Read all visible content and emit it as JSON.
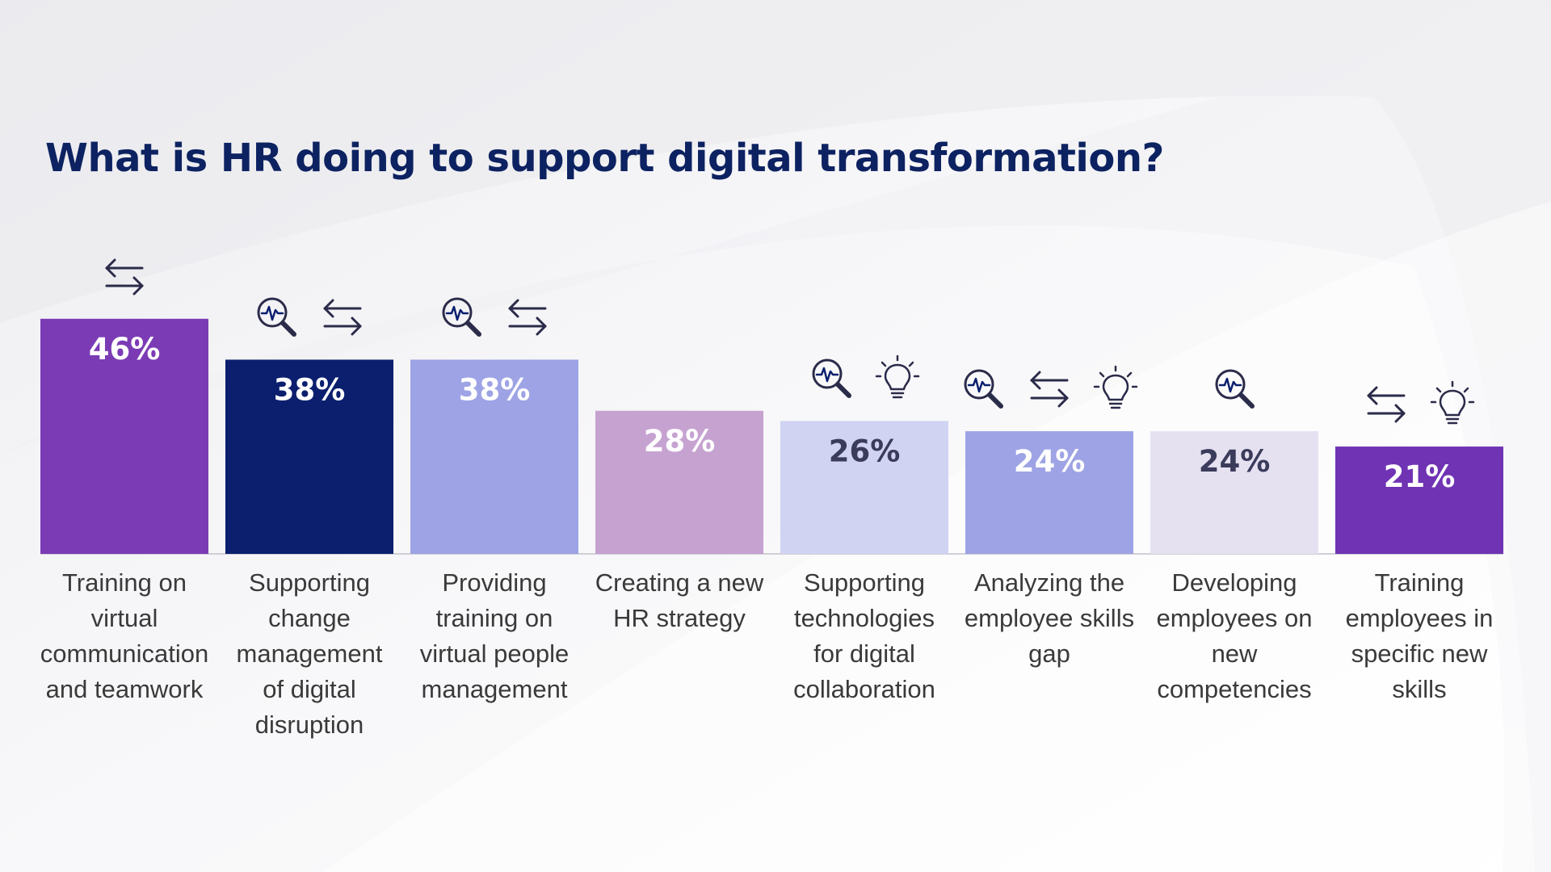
{
  "title": "What is HR doing to support digital transformation?",
  "chart_data": {
    "type": "bar",
    "title": "What is HR doing to support digital transformation?",
    "xlabel": "",
    "ylabel": "",
    "ylim": [
      0,
      50
    ],
    "grid": false,
    "categories": [
      "Training on virtual communication and teamwork",
      "Supporting change management of digital disruption",
      "Providing training on virtual people management",
      "Creating a new HR strategy",
      "Supporting technologies for digital collaboration",
      "Analyzing the employee skills gap",
      "Developing employees on new competencies",
      "Training employees in specific new skills"
    ],
    "values": [
      46,
      38,
      38,
      28,
      26,
      24,
      24,
      21
    ],
    "value_labels": [
      "46%",
      "38%",
      "38%",
      "28%",
      "26%",
      "24%",
      "24%",
      "21%"
    ],
    "bar_colors": [
      "#7b3bb5",
      "#0b1f6e",
      "#9da3e4",
      "#c6a2d1",
      "#d1d3f3",
      "#9da3e4",
      "#e6e1f1",
      "#6f33b4"
    ],
    "value_label_colors": [
      "#ffffff",
      "#ffffff",
      "#ffffff",
      "#ffffff",
      "#3b3b5c",
      "#ffffff",
      "#3b3b5c",
      "#ffffff"
    ],
    "category_label_lines": [
      [
        "Training on",
        "virtual",
        "communication",
        "and teamwork"
      ],
      [
        "Supporting",
        "change",
        "management",
        "of digital",
        "disruption"
      ],
      [
        "Providing",
        "training on",
        "virtual people",
        "management"
      ],
      [
        "Creating a new",
        "HR strategy"
      ],
      [
        "Supporting",
        "technologies",
        "for digital",
        "collaboration"
      ],
      [
        "Analyzing the",
        "employee skills",
        "gap"
      ],
      [
        "Developing",
        "employees on",
        "new",
        "competencies"
      ],
      [
        "Training",
        "employees in",
        "specific new",
        "skills"
      ]
    ],
    "bar_icons": [
      [
        "exchange-arrows-icon"
      ],
      [
        "magnifier-pulse-icon",
        "exchange-arrows-icon"
      ],
      [
        "magnifier-pulse-icon",
        "exchange-arrows-icon"
      ],
      [],
      [
        "magnifier-pulse-icon",
        "lightbulb-icon"
      ],
      [
        "magnifier-pulse-icon",
        "exchange-arrows-icon",
        "lightbulb-icon"
      ],
      [
        "magnifier-pulse-icon"
      ],
      [
        "exchange-arrows-icon",
        "lightbulb-icon"
      ]
    ]
  },
  "colors": {
    "title": "#0d2261",
    "label_text": "#3a3a3a",
    "icon_stroke": "#2b2b4a",
    "icon_accent": "#0b1f6e",
    "baseline": "#cfcfd6"
  }
}
